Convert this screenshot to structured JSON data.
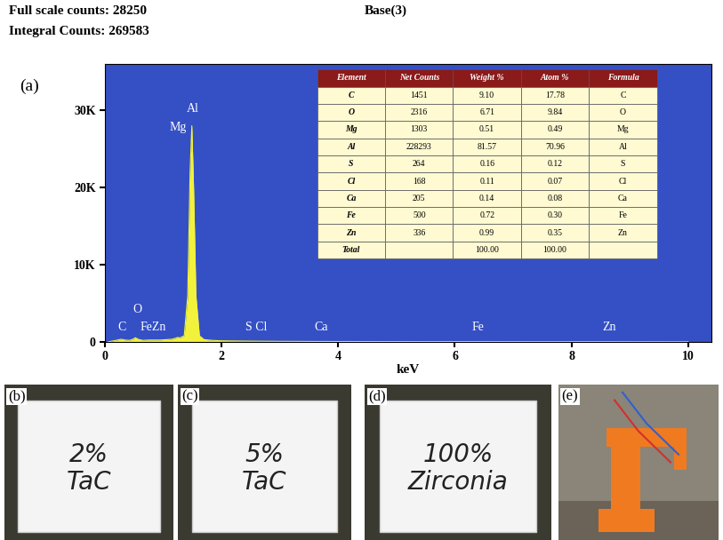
{
  "header": {
    "full_scale_counts": "Full scale counts: 28250",
    "integral_counts": "Integral Counts: 269583",
    "title": "Base(3)"
  },
  "chart_data": {
    "panel_label": "(a)",
    "type": "area",
    "xlabel": "keV",
    "color": "#f2f23c",
    "x": [
      0.05,
      0.15,
      0.22,
      0.28,
      0.34,
      0.42,
      0.48,
      0.52,
      0.57,
      0.65,
      0.75,
      0.85,
      0.95,
      1.05,
      1.15,
      1.22,
      1.25,
      1.28,
      1.36,
      1.42,
      1.46,
      1.49,
      1.52,
      1.56,
      1.62,
      1.7,
      1.85,
      2.0,
      2.3,
      2.6,
      3.0,
      3.7,
      4.5,
      5.5,
      6.4,
      7.5,
      8.6,
      10.0
    ],
    "values": [
      0,
      150,
      250,
      350,
      250,
      200,
      350,
      550,
      350,
      200,
      250,
      250,
      250,
      300,
      350,
      500,
      600,
      500,
      800,
      6000,
      22000,
      28000,
      20000,
      6000,
      800,
      300,
      200,
      150,
      120,
      100,
      80,
      60,
      50,
      40,
      40,
      30,
      30,
      20
    ],
    "xlim": [
      0,
      10.4
    ],
    "xticks": [
      0,
      2,
      4,
      6,
      8,
      10
    ],
    "ylim": [
      0,
      36000
    ],
    "yticks": [
      0,
      {
        "value": 10000,
        "label": "10K"
      },
      {
        "value": 20000,
        "label": "20K"
      },
      {
        "value": 30000,
        "label": "30K"
      }
    ],
    "grid": false,
    "annotations": [
      {
        "text": "Al",
        "x": 1.5,
        "y": 29500
      },
      {
        "text": "Mg",
        "x": 1.25,
        "y": 27000
      },
      {
        "text": "O",
        "x": 0.55,
        "y": 3500
      },
      {
        "text": "C",
        "x": 0.29,
        "y": 1200
      },
      {
        "text": "FeZn",
        "x": 0.82,
        "y": 1200
      },
      {
        "text": "S Cl",
        "x": 2.6,
        "y": 1200
      },
      {
        "text": "Ca",
        "x": 3.7,
        "y": 1200
      },
      {
        "text": "Fe",
        "x": 6.4,
        "y": 1200
      },
      {
        "text": "Zn",
        "x": 8.65,
        "y": 1200
      }
    ],
    "table": {
      "columns": [
        "Element",
        "Net Counts",
        "Weight %",
        "Atom %",
        "Formula"
      ],
      "rows": [
        [
          "C",
          "1451",
          "9.10",
          "17.78",
          "C"
        ],
        [
          "O",
          "2316",
          "6.71",
          "9.84",
          "O"
        ],
        [
          "Mg",
          "1303",
          "0.51",
          "0.49",
          "Mg"
        ],
        [
          "Al",
          "228293",
          "81.57",
          "70.96",
          "Al"
        ],
        [
          "S",
          "264",
          "0.16",
          "0.12",
          "S"
        ],
        [
          "Cl",
          "168",
          "0.11",
          "0.07",
          "Cl"
        ],
        [
          "Ca",
          "205",
          "0.14",
          "0.08",
          "Ca"
        ],
        [
          "Fe",
          "500",
          "0.72",
          "0.30",
          "Fe"
        ],
        [
          "Zn",
          "336",
          "0.99",
          "0.35",
          "Zn"
        ],
        [
          "Total",
          null,
          "100.00",
          "100.00",
          null
        ]
      ]
    }
  },
  "photos": [
    {
      "label": "(b)",
      "text": [
        "2%",
        "TaC"
      ]
    },
    {
      "label": "(c)",
      "text": [
        "5%",
        "TaC"
      ]
    },
    {
      "label": "(d)",
      "text": [
        "100%",
        "Zirconia"
      ]
    },
    {
      "label": "(e)"
    }
  ]
}
